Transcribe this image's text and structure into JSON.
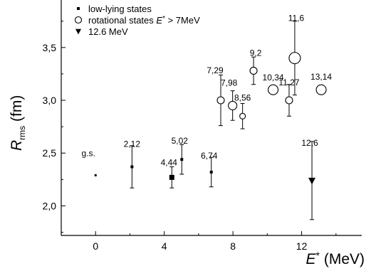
{
  "chart_data": {
    "type": "scatter",
    "xlabel": {
      "symbol": "E",
      "superscript": "*",
      "unit": "(MeV)"
    },
    "ylabel": {
      "symbol": "R",
      "subscript": "rms",
      "unit": "(fm)"
    },
    "xlim": [
      -2,
      15.5
    ],
    "ylim": [
      1.72,
      3.95
    ],
    "xticks": [
      {
        "value": 0,
        "label": "0"
      },
      {
        "value": 4,
        "label": "4"
      },
      {
        "value": 8,
        "label": "8"
      },
      {
        "value": 12,
        "label": "12"
      }
    ],
    "yticks": [
      {
        "value": 2.0,
        "label": "2,0"
      },
      {
        "value": 2.5,
        "label": "2,5"
      },
      {
        "value": 3.0,
        "label": "3,0"
      },
      {
        "value": 3.5,
        "label": "3,5"
      }
    ],
    "legend": {
      "position": "top-left",
      "items": [
        {
          "marker": "square",
          "text": "low-lying states"
        },
        {
          "marker": "circle",
          "text_main": "rotational states ",
          "text_sym": "E",
          "text_sup": "*",
          "text_tail": " > 7MeV"
        },
        {
          "marker": "triangle-down",
          "text": "12.6 MeV"
        }
      ]
    },
    "series": [
      {
        "name": "low-lying states",
        "marker": "square",
        "points": [
          {
            "x": 0.0,
            "y": 2.29,
            "err": 0.0,
            "label": "g.s.",
            "size": 3
          },
          {
            "x": 2.12,
            "y": 2.37,
            "err": 0.2,
            "label": "2,12",
            "size": 4
          },
          {
            "x": 4.44,
            "y": 2.27,
            "err": 0.1,
            "label": "4,44",
            "size": 7
          },
          {
            "x": 5.02,
            "y": 2.44,
            "err": 0.14,
            "label": "5,02",
            "size": 4
          },
          {
            "x": 6.74,
            "y": 2.32,
            "err": 0.14,
            "label": "6,74",
            "size": 4
          }
        ]
      },
      {
        "name": "rotational states E* > 7MeV",
        "marker": "circle",
        "points": [
          {
            "x": 7.29,
            "y": 3.0,
            "err": 0.24,
            "label": "7,29",
            "size": 5
          },
          {
            "x": 7.98,
            "y": 2.95,
            "err": 0.14,
            "label": "7,98",
            "size": 6
          },
          {
            "x": 8.56,
            "y": 2.85,
            "err": 0.12,
            "label": "8,56",
            "size": 4
          },
          {
            "x": 9.2,
            "y": 3.28,
            "err": 0.13,
            "label": "9,2",
            "size": 5
          },
          {
            "x": 10.34,
            "y": 3.1,
            "err": 0.0,
            "label": "10,34",
            "size": 7
          },
          {
            "x": 11.27,
            "y": 3.0,
            "err": 0.15,
            "label": "11,27",
            "size": 5
          },
          {
            "x": 11.6,
            "y": 3.4,
            "err": 0.35,
            "label": "11,6",
            "size": 8
          },
          {
            "x": 13.14,
            "y": 3.1,
            "err": 0.0,
            "label": "13,14",
            "size": 7
          }
        ]
      },
      {
        "name": "12.6 MeV",
        "marker": "triangle-down",
        "points": [
          {
            "x": 12.6,
            "y": 2.24,
            "err": 0.37,
            "label": "12,6",
            "size": 5
          }
        ]
      }
    ]
  }
}
